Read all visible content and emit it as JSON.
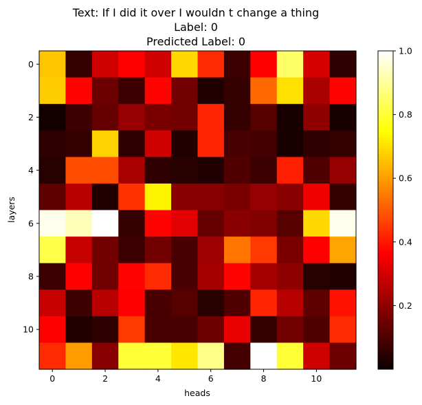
{
  "chart_data": {
    "type": "heatmap",
    "title_lines": [
      "Text: If I did it over I wouldn t change a thing",
      "Label: 0",
      "Predicted Label: 0"
    ],
    "xlabel": "heads",
    "ylabel": "layers",
    "colormap": "hot",
    "x_ticks": [
      0,
      2,
      4,
      6,
      8,
      10
    ],
    "y_ticks": [
      0,
      2,
      4,
      6,
      8,
      10
    ],
    "colorbar_ticks": [
      0.2,
      0.4,
      0.6,
      0.8,
      1.0
    ],
    "colorbar_tick_labels": [
      "0.2",
      "0.4",
      "0.6",
      "0.8",
      "1.0"
    ],
    "value_range": [
      0.0,
      1.0
    ],
    "rows": [
      [
        0.66,
        0.06,
        0.28,
        0.35,
        0.28,
        0.69,
        0.43,
        0.07,
        0.36,
        0.85,
        0.29,
        0.05
      ],
      [
        0.67,
        0.37,
        0.14,
        0.07,
        0.37,
        0.15,
        0.03,
        0.06,
        0.52,
        0.7,
        0.23,
        0.37
      ],
      [
        0.01,
        0.07,
        0.13,
        0.2,
        0.16,
        0.15,
        0.42,
        0.06,
        0.11,
        0.02,
        0.19,
        0.02
      ],
      [
        0.05,
        0.06,
        0.68,
        0.05,
        0.28,
        0.03,
        0.42,
        0.09,
        0.08,
        0.02,
        0.05,
        0.06
      ],
      [
        0.04,
        0.48,
        0.48,
        0.23,
        0.05,
        0.04,
        0.03,
        0.1,
        0.07,
        0.41,
        0.1,
        0.2
      ],
      [
        0.12,
        0.25,
        0.03,
        0.44,
        0.73,
        0.18,
        0.18,
        0.16,
        0.2,
        0.18,
        0.33,
        0.06
      ],
      [
        0.98,
        0.93,
        1.0,
        0.06,
        0.37,
        0.31,
        0.13,
        0.18,
        0.17,
        0.11,
        0.69,
        0.98
      ],
      [
        0.82,
        0.27,
        0.15,
        0.07,
        0.15,
        0.09,
        0.21,
        0.54,
        0.45,
        0.16,
        0.36,
        0.61
      ],
      [
        0.07,
        0.36,
        0.15,
        0.37,
        0.43,
        0.09,
        0.22,
        0.37,
        0.22,
        0.19,
        0.04,
        0.03
      ],
      [
        0.27,
        0.07,
        0.25,
        0.36,
        0.09,
        0.11,
        0.04,
        0.1,
        0.42,
        0.25,
        0.12,
        0.39
      ],
      [
        0.35,
        0.03,
        0.05,
        0.45,
        0.09,
        0.09,
        0.14,
        0.32,
        0.06,
        0.15,
        0.1,
        0.43
      ],
      [
        0.43,
        0.6,
        0.18,
        0.8,
        0.8,
        0.71,
        0.88,
        0.08,
        1.0,
        0.8,
        0.28,
        0.14
      ]
    ]
  }
}
